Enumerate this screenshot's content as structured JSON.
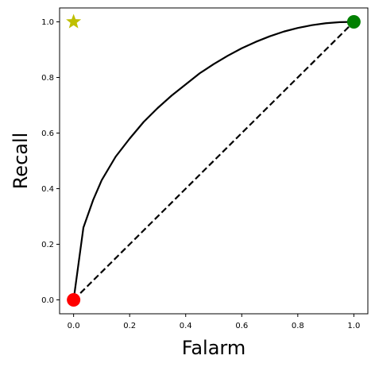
{
  "chart_data": {
    "type": "line",
    "title": "",
    "xlabel": "Falarm",
    "ylabel": "Recall",
    "xlim": [
      -0.05,
      1.05
    ],
    "ylim": [
      -0.05,
      1.05
    ],
    "xticks": [
      "0.0",
      "0.2",
      "0.4",
      "0.6",
      "0.8",
      "1.0"
    ],
    "yticks": [
      "0.0",
      "0.2",
      "0.4",
      "0.6",
      "0.8",
      "1.0"
    ],
    "grid": false,
    "legend": "none",
    "series": [
      {
        "style": "solid",
        "color": "#000000",
        "x": [
          0.0,
          0.035,
          0.07,
          0.1,
          0.15,
          0.2,
          0.25,
          0.3,
          0.35,
          0.4,
          0.45,
          0.5,
          0.55,
          0.6,
          0.65,
          0.7,
          0.75,
          0.8,
          0.85,
          0.9,
          0.95,
          1.0
        ],
        "y": [
          0.0,
          0.26,
          0.36,
          0.43,
          0.515,
          0.58,
          0.64,
          0.69,
          0.735,
          0.775,
          0.815,
          0.848,
          0.878,
          0.905,
          0.928,
          0.948,
          0.965,
          0.978,
          0.988,
          0.995,
          0.999,
          1.0
        ]
      },
      {
        "style": "dashed",
        "color": "#000000",
        "x": [
          0.0,
          1.0
        ],
        "y": [
          0.0,
          1.0
        ]
      }
    ],
    "markers": [
      {
        "shape": "circle",
        "color": "#ff0000",
        "x": 0.0,
        "y": 0.0
      },
      {
        "shape": "circle",
        "color": "#008000",
        "x": 1.0,
        "y": 1.0
      },
      {
        "shape": "star",
        "color": "#bfbf00",
        "x": 0.0,
        "y": 1.0
      }
    ]
  }
}
